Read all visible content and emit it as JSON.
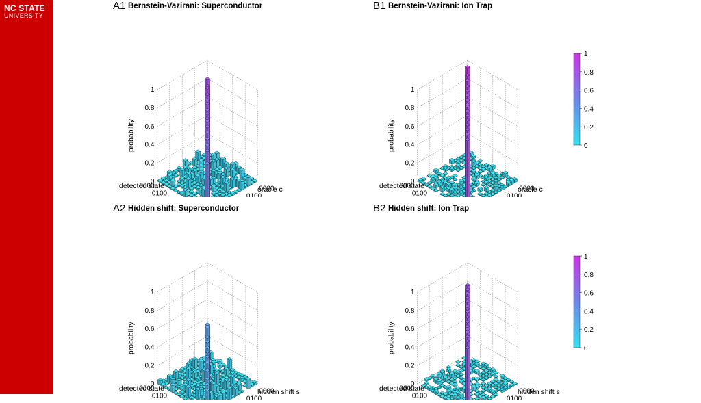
{
  "branding": {
    "line1": "NC STATE",
    "line2": "UNIVERSITY"
  },
  "colors": {
    "sidebar": "#cc0000",
    "low": "#33e0ee",
    "mid": "#6e86e8",
    "high": "#cc33e6",
    "grid": "#999999"
  },
  "chart_data": [
    {
      "id": "A1",
      "type": "bar3d",
      "title_letter": "A1",
      "title": "Bernstein-Vazirani: Superconductor",
      "zlabel": "probability",
      "xlabel": "detected state",
      "ylabel": "oracle c",
      "zticks": [
        "0",
        "0.2",
        "0.4",
        "0.6",
        "0.8",
        "1"
      ],
      "state_ticks": [
        "0000",
        "0100",
        "1000",
        "1100"
      ],
      "oracle_ticks": [
        "0000",
        "0100",
        "1000",
        "1100"
      ],
      "zlim": [
        0,
        1
      ],
      "colorbar": false,
      "diagonal": [
        0.82,
        0.78,
        0.8,
        0.77,
        0.75,
        0.75,
        0.72,
        0.72,
        0.71,
        0.72,
        0.7,
        0.68,
        0.65,
        0.62,
        0.6,
        0.5
      ],
      "background_level": 0.05
    },
    {
      "id": "B1",
      "type": "bar3d",
      "title_letter": "B1",
      "title": "Bernstein-Vazirani: Ion Trap",
      "zlabel": "probability",
      "xlabel": "detected state",
      "ylabel": "oracle c",
      "zticks": [
        "0",
        "0.2",
        "0.4",
        "0.6",
        "0.8",
        "1"
      ],
      "state_ticks": [
        "0000",
        "0100",
        "1000",
        "1100"
      ],
      "oracle_ticks": [
        "0000",
        "0100",
        "1000",
        "1100"
      ],
      "zlim": [
        0,
        1
      ],
      "colorbar": true,
      "colorbar_ticks": [
        "0",
        "0.2",
        "0.4",
        "0.6",
        "0.8",
        "1"
      ],
      "diagonal": [
        0.95,
        0.9,
        0.88,
        0.86,
        0.85,
        0.84,
        0.83,
        0.82,
        0.84,
        0.83,
        0.82,
        0.81,
        0.8,
        0.79,
        0.78,
        0.76
      ],
      "background_level": 0.02
    },
    {
      "id": "A2",
      "type": "bar3d",
      "title_letter": "A2",
      "title": "Hidden shift: Superconductor",
      "zlabel": "probability",
      "xlabel": "detected state",
      "ylabel": "hidden shift s",
      "zticks": [
        "0",
        "0.2",
        "0.4",
        "0.6",
        "0.8",
        "1"
      ],
      "state_ticks": [
        "0000",
        "0100",
        "1000",
        "1100"
      ],
      "oracle_ticks": [
        "0000",
        "0100",
        "1000",
        "1100"
      ],
      "zlim": [
        0,
        1
      ],
      "colorbar": false,
      "diagonal": [
        0.35,
        0.36,
        0.3,
        0.33,
        0.32,
        0.3,
        0.34,
        0.33,
        0.32,
        0.36,
        0.34,
        0.3,
        0.33,
        0.28,
        0.26,
        0.24
      ],
      "background_level": 0.06
    },
    {
      "id": "B2",
      "type": "bar3d",
      "title_letter": "B2",
      "title": "Hidden shift: Ion Trap",
      "zlabel": "probability",
      "xlabel": "detected state",
      "ylabel": "hidden shift s",
      "zticks": [
        "0",
        "0.2",
        "0.4",
        "0.6",
        "0.8",
        "1"
      ],
      "state_ticks": [
        "0000",
        "0100",
        "1000",
        "1100"
      ],
      "oracle_ticks": [
        "0000",
        "0100",
        "1000",
        "1100"
      ],
      "zlim": [
        0,
        1
      ],
      "colorbar": true,
      "colorbar_ticks": [
        "0",
        "0.2",
        "0.4",
        "0.6",
        "0.8",
        "1"
      ],
      "diagonal": [
        0.78,
        0.77,
        0.77,
        0.76,
        0.76,
        0.75,
        0.76,
        0.77,
        0.75,
        0.74,
        0.73,
        0.74,
        0.75,
        0.74,
        0.73,
        0.7
      ],
      "background_level": 0.02
    }
  ]
}
